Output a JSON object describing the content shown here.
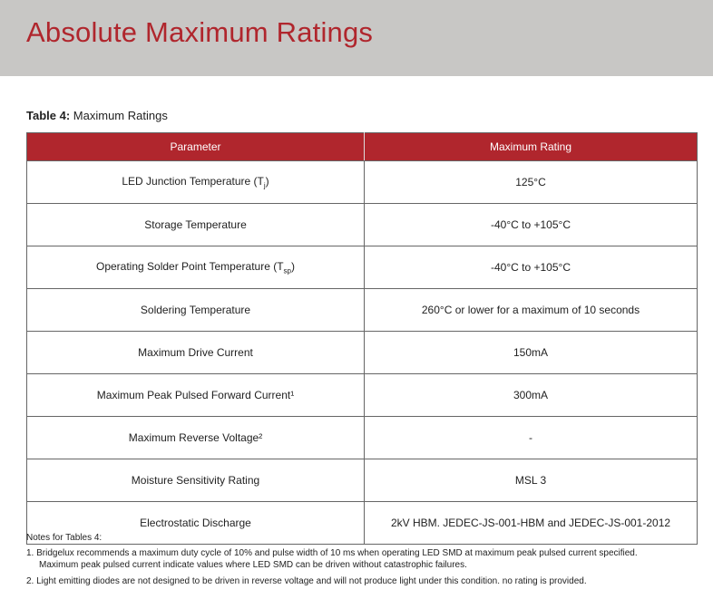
{
  "title": "Absolute Maximum Ratings",
  "caption": {
    "label": "Table 4:",
    "text": "Maximum Ratings"
  },
  "columns": [
    "Parameter",
    "Maximum Rating"
  ],
  "rows": [
    {
      "param": "LED Junction Temperature (T",
      "sub": "j",
      "close": ")",
      "value": "125°C"
    },
    {
      "param": "Storage Temperature",
      "sub": "",
      "close": "",
      "value": "-40°C to +105°C"
    },
    {
      "param": "Operating Solder Point Temperature (T",
      "sub": "sp",
      "close": ")",
      "value": "-40°C to +105°C"
    },
    {
      "param": "Soldering Temperature",
      "sub": "",
      "close": "",
      "value": "260°C or lower for a maximum of 10 seconds"
    },
    {
      "param": "Maximum Drive Current",
      "sub": "",
      "close": "",
      "value": "150mA"
    },
    {
      "param": "Maximum Peak Pulsed Forward Current¹",
      "sub": "",
      "close": "",
      "value": "300mA"
    },
    {
      "param": "Maximum Reverse Voltage²",
      "sub": "",
      "close": "",
      "value": "-"
    },
    {
      "param": "Moisture Sensitivity Rating",
      "sub": "",
      "close": "",
      "value": "MSL 3"
    },
    {
      "param": "Electrostatic Discharge",
      "sub": "",
      "close": "",
      "value": "2kV HBM. JEDEC-JS-001-HBM and JEDEC-JS-001-2012"
    }
  ],
  "notes": {
    "heading": "Notes for Tables 4:",
    "n1a": "1. Bridgelux recommends a maximum duty cycle of 10% and pulse width of 10 ms when operating LED SMD at maximum peak pulsed current specified.",
    "n1b": "Maximum peak pulsed current indicate values where LED SMD can be driven without catastrophic failures.",
    "n2": "2. Light emitting diodes are not designed to be driven in reverse voltage and will not produce light under this condition. no rating is provided."
  }
}
